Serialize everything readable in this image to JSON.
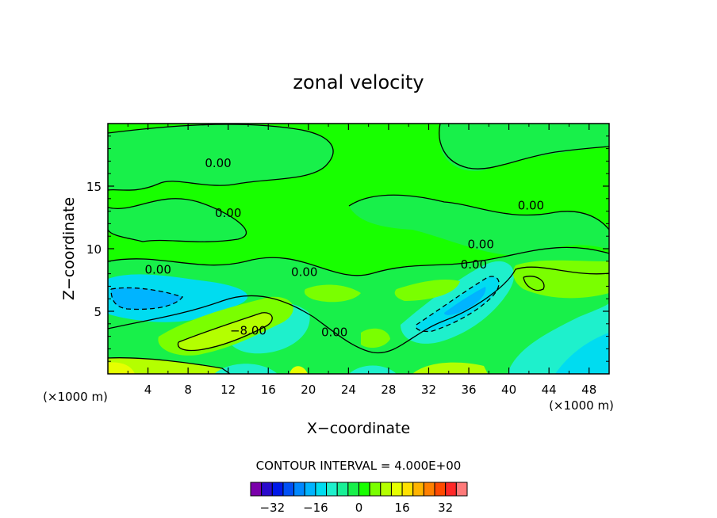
{
  "chart_data": {
    "type": "heatmap",
    "title": "zonal velocity",
    "xlabel": "X−coordinate",
    "ylabel": "Z−coordinate",
    "x_unit_left": "(×1000 m)",
    "x_unit_right": "(×1000 m)",
    "xlim": [
      0,
      50
    ],
    "ylim": [
      0,
      20
    ],
    "x_ticks": [
      "4",
      "8",
      "12",
      "16",
      "20",
      "24",
      "28",
      "32",
      "36",
      "40",
      "44",
      "48"
    ],
    "y_ticks": [
      "5",
      "10",
      "15"
    ],
    "contour_interval_text": "CONTOUR INTERVAL = 4.000E+00",
    "contour_labels": [
      {
        "text": "0.00",
        "x": 11.0,
        "z": 16.9
      },
      {
        "text": "0.00",
        "x": 12.0,
        "z": 12.9
      },
      {
        "text": "0.00",
        "x": 5.0,
        "z": 8.4
      },
      {
        "text": "0.00",
        "x": 19.6,
        "z": 8.2
      },
      {
        "text": "0.00",
        "x": 22.6,
        "z": 3.4
      },
      {
        "text": "0.00",
        "x": 36.5,
        "z": 8.8
      },
      {
        "text": "0.00",
        "x": 37.2,
        "z": 10.4
      },
      {
        "text": "0.00",
        "x": 42.2,
        "z": 13.5
      },
      {
        "text": "−8.00",
        "x": 14.0,
        "z": 3.5
      }
    ],
    "colorbar": {
      "ticks": [
        "−32",
        "−16",
        "0",
        "16",
        "32"
      ],
      "tick_values": [
        -32,
        -16,
        0,
        16,
        32
      ],
      "levels": [
        -40,
        -36,
        -32,
        -28,
        -24,
        -20,
        -16,
        -12,
        -8,
        -4,
        0,
        4,
        8,
        12,
        16,
        20,
        24,
        28,
        32,
        36,
        40
      ],
      "colors": [
        "#7a00aa",
        "#2a0acc",
        "#0018e8",
        "#0050f5",
        "#0088ff",
        "#00b4ff",
        "#00dcf0",
        "#1ef0cc",
        "#18f096",
        "#18f04a",
        "#18ff00",
        "#7aff00",
        "#b4ff00",
        "#e6ff00",
        "#ffe100",
        "#ffb400",
        "#ff8000",
        "#ff4a00",
        "#ff2828",
        "#ff7a7a"
      ]
    }
  }
}
